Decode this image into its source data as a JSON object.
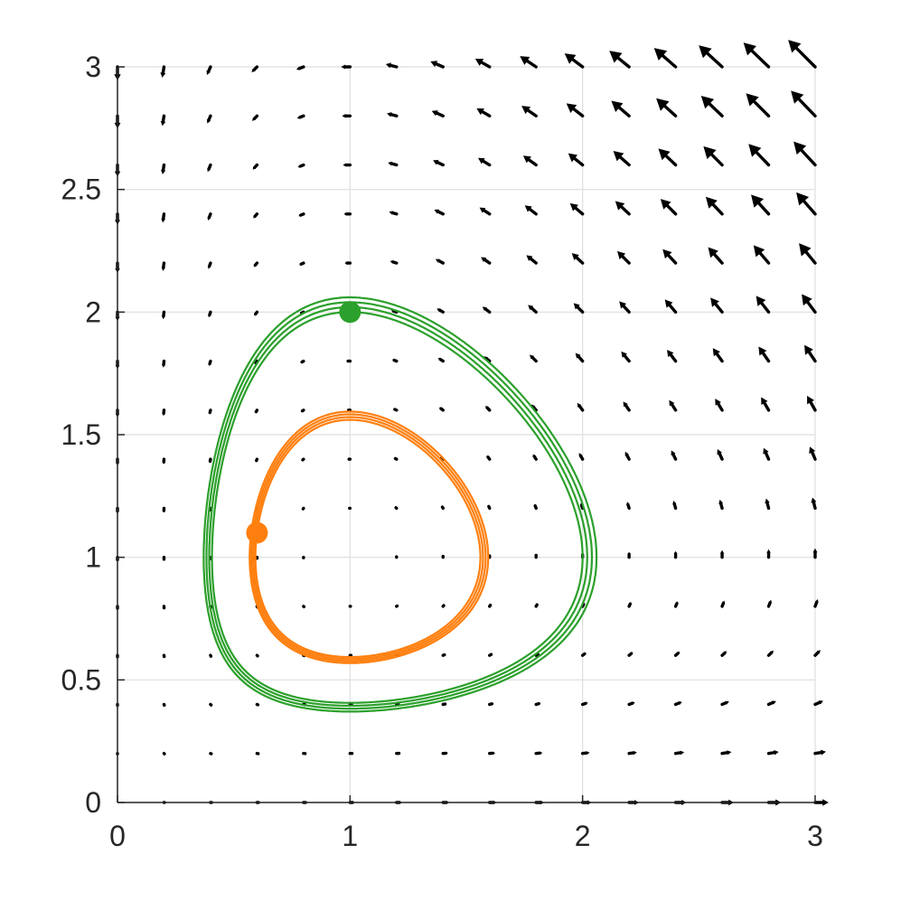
{
  "chart_data": {
    "type": "line",
    "title": "",
    "xlabel": "",
    "ylabel": "",
    "xlim": [
      0,
      3
    ],
    "ylim": [
      0,
      3
    ],
    "grid": true,
    "x_ticks": [
      "0",
      "1",
      "2",
      "3"
    ],
    "y_ticks": [
      "0",
      "0.5",
      "1",
      "1.5",
      "2",
      "2.5",
      "3"
    ],
    "x_tick_values": [
      0,
      1,
      2,
      3
    ],
    "y_tick_values": [
      0,
      0.5,
      1,
      1.5,
      2,
      2.5,
      3
    ],
    "vector_field": {
      "description": "direction field of dx/dt = x(1-y), dy/dt = y(x-1)",
      "x_values": [
        0.0,
        0.2,
        0.4,
        0.6,
        0.8,
        1.0,
        1.2,
        1.4,
        1.6,
        1.8,
        2.0,
        2.2,
        2.4,
        2.6,
        2.8,
        3.0
      ],
      "y_values": [
        0.0,
        0.2,
        0.4,
        0.6,
        0.8,
        1.0,
        1.2,
        1.4,
        1.6,
        1.8,
        2.0,
        2.2,
        2.4,
        2.6,
        2.8,
        3.0
      ],
      "color": "#000000"
    },
    "series": [
      {
        "color": "#2ca02c",
        "initial_point": [
          1.0,
          2.0
        ],
        "x": [
          1.0,
          1.3,
          1.6,
          1.85,
          2.02,
          2.1,
          2.08,
          1.95,
          1.7,
          1.4,
          1.1,
          0.8,
          0.55,
          0.42,
          0.4,
          0.45,
          0.58,
          0.78,
          1.0
        ],
        "y": [
          2.0,
          1.97,
          1.84,
          1.62,
          1.35,
          1.05,
          0.8,
          0.6,
          0.46,
          0.4,
          0.39,
          0.44,
          0.6,
          0.85,
          1.15,
          1.48,
          1.76,
          1.95,
          2.0
        ]
      },
      {
        "color": "#ff7f0e",
        "initial_point": [
          0.6,
          1.1
        ],
        "x": [
          0.6,
          0.63,
          0.72,
          0.88,
          1.05,
          1.25,
          1.45,
          1.6,
          1.7,
          1.72,
          1.68,
          1.57,
          1.4,
          1.2,
          1.0,
          0.8,
          0.65,
          0.6
        ],
        "y": [
          1.1,
          1.32,
          1.52,
          1.65,
          1.69,
          1.62,
          1.47,
          1.28,
          1.05,
          0.85,
          0.68,
          0.57,
          0.53,
          0.54,
          0.56,
          0.62,
          0.8,
          1.1
        ]
      }
    ]
  }
}
